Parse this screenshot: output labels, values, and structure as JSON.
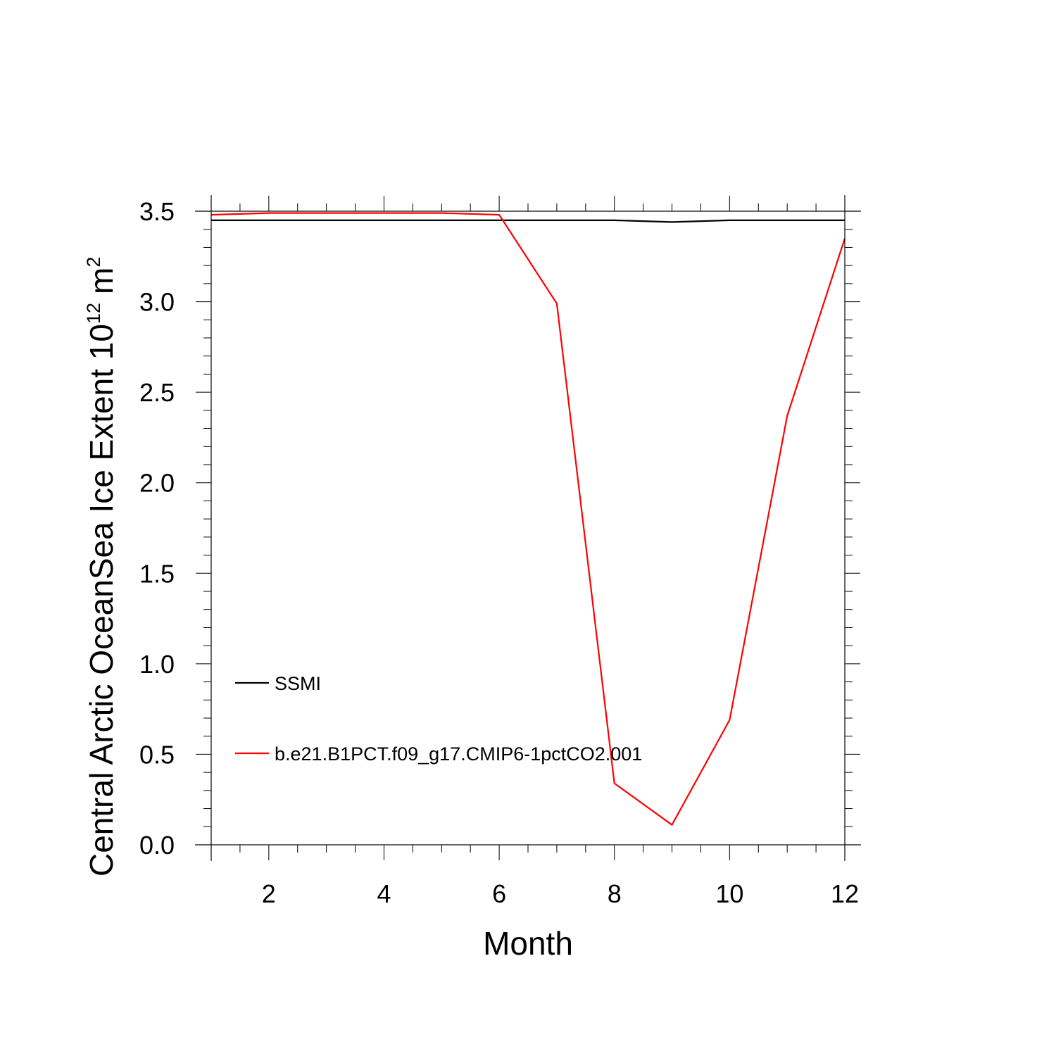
{
  "chart_data": {
    "type": "line",
    "xlabel": "Month",
    "ylabel_main": "Central Arctic OceanSea Ice Extent 10",
    "ylabel_exponent": "12",
    "ylabel_unit": "m",
    "ylabel_unit_exponent": "2",
    "xlim": [
      1,
      12
    ],
    "ylim": [
      0,
      3.5
    ],
    "x_ticks": [
      2,
      4,
      6,
      8,
      10,
      12
    ],
    "x_tick_labels": [
      "2",
      "4",
      "6",
      "8",
      "10",
      "12"
    ],
    "y_ticks": [
      0,
      0.5,
      1,
      1.5,
      2,
      2.5,
      3,
      3.5
    ],
    "y_tick_labels": [
      "0.0",
      "0.5",
      "1.0",
      "1.5",
      "2.0",
      "2.5",
      "3.0",
      "3.5"
    ],
    "x_minor_step": 0.5,
    "y_minor_step": 0.1,
    "legend_position": "lower-left",
    "grid": false,
    "x": [
      1,
      2,
      3,
      4,
      5,
      6,
      7,
      8,
      9,
      10,
      11,
      12
    ],
    "series": [
      {
        "name": "SSMI",
        "color": "#000000",
        "values": [
          3.45,
          3.45,
          3.45,
          3.45,
          3.45,
          3.45,
          3.45,
          3.45,
          3.44,
          3.45,
          3.45,
          3.45
        ]
      },
      {
        "name": "b.e21.B1PCT.f09_g17.CMIP6-1pctCO2.001",
        "color": "#ff0000",
        "values": [
          3.48,
          3.49,
          3.49,
          3.49,
          3.49,
          3.48,
          2.99,
          0.34,
          0.11,
          0.69,
          2.37,
          3.35
        ]
      }
    ]
  }
}
